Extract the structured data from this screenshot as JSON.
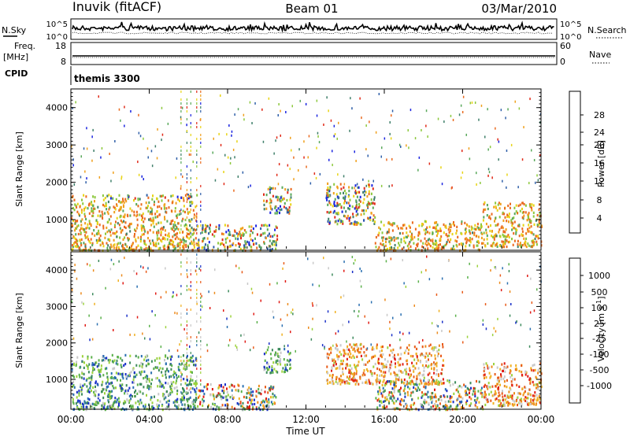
{
  "header": {
    "title": "Inuvik (fitACF)",
    "beam": "Beam 01",
    "date": "03/Mar/2010"
  },
  "summary_panels": {
    "nsky": {
      "label": "N.Sky",
      "right_label": "N.Search",
      "left_ticks": [
        "10^5",
        "10^0"
      ],
      "right_ticks": [
        "10^5",
        "10^0"
      ]
    },
    "freq": {
      "label_lines": [
        "Freq.",
        "[MHz]"
      ],
      "right_label": "Nave",
      "left_ticks": [
        "18",
        "8"
      ],
      "right_ticks": [
        "60",
        "0"
      ]
    },
    "cpid": {
      "label": "CPID",
      "value": "themis 3300"
    }
  },
  "x_axis": {
    "label": "Time UT",
    "ticks": [
      "00:00",
      "04:00",
      "08:00",
      "12:00",
      "16:00",
      "20:00",
      "00:00"
    ]
  },
  "chart_data": [
    {
      "type": "heatmap",
      "quantity": "Power",
      "ylabel": "Slant Range [km]",
      "yticks": [
        1000,
        2000,
        3000,
        4000
      ],
      "ylim": [
        180,
        4500
      ],
      "xlim_hours": [
        0,
        24
      ],
      "colorbar": {
        "label": "Power [dB]",
        "ticks": [
          "4",
          "8",
          "12",
          "16",
          "20",
          "24",
          "28"
        ],
        "colors": [
          "#1a24e0",
          "#2f5fa8",
          "#3f7f6a",
          "#58a85a",
          "#8cc83c",
          "#e8d414",
          "#f0a01c",
          "#ea6a1e",
          "#e02a18"
        ]
      },
      "regions": [
        {
          "t": [
            0.0,
            6.4
          ],
          "r": [
            200,
            1700
          ],
          "value": "high"
        },
        {
          "t": [
            6.4,
            10.5
          ],
          "r": [
            200,
            900
          ],
          "value": "mixed"
        },
        {
          "t": [
            9.8,
            11.2
          ],
          "r": [
            1200,
            1900
          ],
          "value": "mixed"
        },
        {
          "t": [
            13.0,
            15.5
          ],
          "r": [
            900,
            2000
          ],
          "value": "mixed"
        },
        {
          "t": [
            15.5,
            21.0
          ],
          "r": [
            200,
            1000
          ],
          "value": "high"
        },
        {
          "t": [
            21.0,
            24.0
          ],
          "r": [
            300,
            1500
          ],
          "value": "high"
        }
      ]
    },
    {
      "type": "heatmap",
      "quantity": "Velocity",
      "ylabel": "Slant Range [km]",
      "yticks": [
        1000,
        2000,
        3000,
        4000
      ],
      "ylim": [
        180,
        4500
      ],
      "xlim_hours": [
        0,
        24
      ],
      "colorbar": {
        "label": "Velocity [m s^-1]",
        "ticks": [
          "1000",
          "500",
          "100",
          "25",
          "-25",
          "-100",
          "-500",
          "-1000"
        ],
        "colors": [
          "#1a30c8",
          "#2a6fb0",
          "#3d8a5c",
          "#5ab04a",
          "#9cd23c",
          "#c8c8c8",
          "#f0b020",
          "#ec8a1c",
          "#e85a18",
          "#e01a14"
        ]
      },
      "regions": [
        {
          "t": [
            0.0,
            6.4
          ],
          "r": [
            200,
            1700
          ],
          "value": "positive"
        },
        {
          "t": [
            6.4,
            10.5
          ],
          "r": [
            200,
            900
          ],
          "value": "mixed"
        },
        {
          "t": [
            9.8,
            11.2
          ],
          "r": [
            1200,
            1900
          ],
          "value": "positive"
        },
        {
          "t": [
            13.0,
            19.0
          ],
          "r": [
            900,
            2000
          ],
          "value": "negative"
        },
        {
          "t": [
            15.5,
            21.0
          ],
          "r": [
            200,
            1000
          ],
          "value": "mixed"
        },
        {
          "t": [
            21.0,
            24.0
          ],
          "r": [
            300,
            1500
          ],
          "value": "negative"
        }
      ]
    }
  ]
}
